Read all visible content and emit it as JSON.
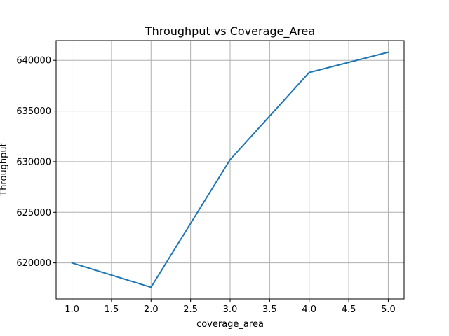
{
  "chart_data": {
    "type": "line",
    "title": "Throughput vs Coverage_Area",
    "xlabel": "coverage_area",
    "ylabel": "Throughput",
    "x": [
      1.0,
      2.0,
      3.0,
      4.0,
      5.0
    ],
    "series": [
      {
        "values": [
          620000,
          617600,
          630200,
          638800,
          640800
        ],
        "color": "#1f77b4"
      }
    ],
    "xlim": [
      0.8,
      5.2
    ],
    "ylim": [
      616450,
      641950
    ],
    "xticks": [
      1.0,
      1.5,
      2.0,
      2.5,
      3.0,
      3.5,
      4.0,
      4.5,
      5.0
    ],
    "xtick_labels": [
      "1.0",
      "1.5",
      "2.0",
      "2.5",
      "3.0",
      "3.5",
      "4.0",
      "4.5",
      "5.0"
    ],
    "yticks": [
      620000,
      625000,
      630000,
      635000,
      640000
    ],
    "ytick_labels": [
      "620000",
      "625000",
      "630000",
      "635000",
      "640000"
    ],
    "grid": true,
    "legend": false
  }
}
